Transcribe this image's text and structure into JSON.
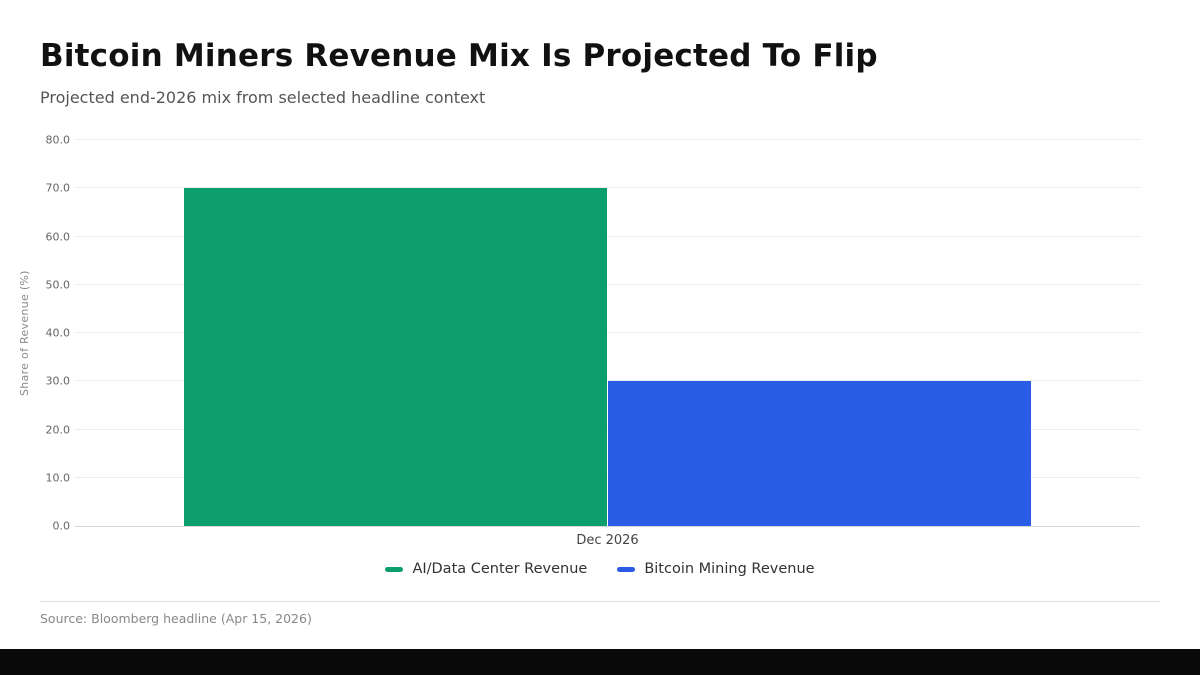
{
  "chart_data": {
    "type": "bar",
    "title": "Bitcoin Miners Revenue Mix Is Projected To Flip",
    "subtitle": "Projected end-2026 mix from selected headline context",
    "categories": [
      "Dec 2026"
    ],
    "series": [
      {
        "name": "AI/Data Center Revenue",
        "values": [
          70.0
        ],
        "color": "#0c9e6c"
      },
      {
        "name": "Bitcoin Mining Revenue",
        "values": [
          30.0
        ],
        "color": "#2a5ce6"
      }
    ],
    "xlabel": "",
    "ylabel": "Share of Revenue (%)",
    "ylim": [
      0,
      80
    ],
    "yticks": [
      0,
      10,
      20,
      30,
      40,
      50,
      60,
      70,
      80
    ],
    "ytick_decimals": 1,
    "grid": true,
    "legend_position": "bottom",
    "source": "Source: Bloomberg headline (Apr 15, 2026)"
  },
  "colors": {
    "footer_bar": "#0a0a0a",
    "gridline": "#ececec"
  }
}
